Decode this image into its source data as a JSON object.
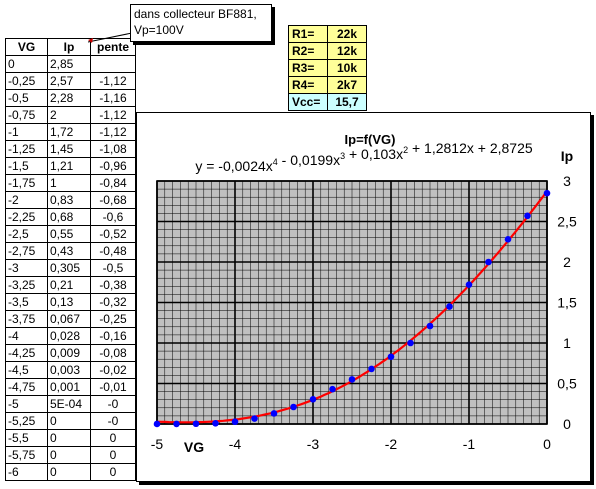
{
  "comment": {
    "line1": "dans collecteur BF881,",
    "line2": "Vp=100V"
  },
  "table": {
    "headers": [
      "VG",
      "Ip",
      "pente"
    ],
    "rows": [
      [
        "0",
        "2,85",
        ""
      ],
      [
        "-0,25",
        "2,57",
        "-1,12"
      ],
      [
        "-0,5",
        "2,28",
        "-1,16"
      ],
      [
        "-0,75",
        "2",
        "-1,12"
      ],
      [
        "-1",
        "1,72",
        "-1,12"
      ],
      [
        "-1,25",
        "1,45",
        "-1,08"
      ],
      [
        "-1,5",
        "1,21",
        "-0,96"
      ],
      [
        "-1,75",
        "1",
        "-0,84"
      ],
      [
        "-2",
        "0,83",
        "-0,68"
      ],
      [
        "-2,25",
        "0,68",
        "-0,6"
      ],
      [
        "-2,5",
        "0,55",
        "-0,52"
      ],
      [
        "-2,75",
        "0,43",
        "-0,48"
      ],
      [
        "-3",
        "0,305",
        "-0,5"
      ],
      [
        "-3,25",
        "0,21",
        "-0,38"
      ],
      [
        "-3,5",
        "0,13",
        "-0,32"
      ],
      [
        "-3,75",
        "0,067",
        "-0,25"
      ],
      [
        "-4",
        "0,028",
        "-0,16"
      ],
      [
        "-4,25",
        "0,009",
        "-0,08"
      ],
      [
        "-4,5",
        "0,003",
        "-0,02"
      ],
      [
        "-4,75",
        "0,001",
        "-0,01"
      ],
      [
        "-5",
        "5E-04",
        "-0"
      ],
      [
        "-5,25",
        "0",
        "-0"
      ],
      [
        "-5,5",
        "0",
        "0"
      ],
      [
        "-5,75",
        "0",
        "0"
      ],
      [
        "-6",
        "0",
        "0"
      ]
    ]
  },
  "resistors": [
    {
      "key": "R1=",
      "value": "22k"
    },
    {
      "key": "R2=",
      "value": "12k"
    },
    {
      "key": "R3=",
      "value": "10k"
    },
    {
      "key": "R4=",
      "value": "2k7"
    },
    {
      "key": "Vcc=",
      "value": "15,7"
    }
  ],
  "colors": {
    "plot_bg": "#c0c0c0",
    "curve": "#ff0000",
    "points": "#0000ff",
    "note_fill": "#ffff99",
    "vcc_fill": "#ccffff"
  },
  "chart_data": {
    "type": "scatter",
    "title": "Ip=f(VG)",
    "trendline_label": "y = -0,0024x4 - 0,0199x3 + 0,103x2 + 1,2812x + 2,8725",
    "trendline_coefficients": [
      -0.0024,
      -0.0199,
      0.103,
      1.2812,
      2.8725
    ],
    "xlabel": "VG",
    "ylabel": "Ip",
    "xlim": [
      -5,
      0
    ],
    "ylim": [
      0,
      3
    ],
    "x_ticks": [
      "-5",
      "-4",
      "-3",
      "-2",
      "-1",
      "0"
    ],
    "y_ticks": [
      "0",
      "0,5",
      "1",
      "1,5",
      "2",
      "2,5",
      "3"
    ],
    "grid": true,
    "x": [
      0,
      -0.25,
      -0.5,
      -0.75,
      -1,
      -1.25,
      -1.5,
      -1.75,
      -2,
      -2.25,
      -2.5,
      -2.75,
      -3,
      -3.25,
      -3.5,
      -3.75,
      -4,
      -4.25,
      -4.5,
      -4.75,
      -5
    ],
    "y": [
      2.85,
      2.57,
      2.28,
      2,
      1.72,
      1.45,
      1.21,
      1,
      0.83,
      0.68,
      0.55,
      0.43,
      0.305,
      0.21,
      0.13,
      0.067,
      0.028,
      0.009,
      0.003,
      0.001,
      0.0005
    ]
  }
}
